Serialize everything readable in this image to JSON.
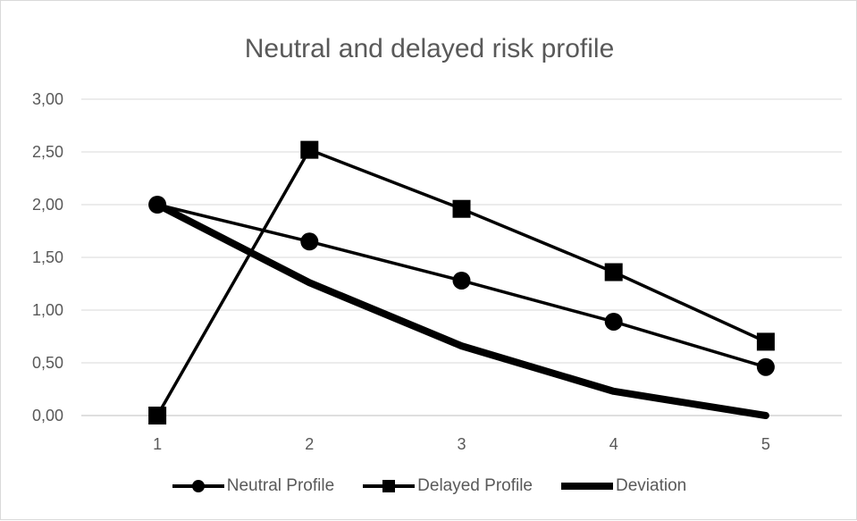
{
  "chart_data": {
    "type": "line",
    "title": "Neutral and delayed risk profile",
    "xlabel": "",
    "ylabel": "",
    "categories": [
      "1",
      "2",
      "3",
      "4",
      "5"
    ],
    "y_ticks": [
      "0,00",
      "0,50",
      "1,00",
      "1,50",
      "2,00",
      "2,50",
      "3,00"
    ],
    "ylim": [
      0,
      3
    ],
    "grid": true,
    "legend_position": "bottom",
    "series": [
      {
        "name": "Neutral Profile",
        "values": [
          2.0,
          1.65,
          1.28,
          0.89,
          0.46
        ],
        "marker": "circle",
        "color": "#000000"
      },
      {
        "name": "Delayed Profile",
        "values": [
          0.0,
          2.52,
          1.96,
          1.36,
          0.7
        ],
        "marker": "square",
        "color": "#000000"
      },
      {
        "name": "Deviation",
        "values": [
          2.0,
          1.26,
          0.66,
          0.23,
          0.0
        ],
        "marker": "none",
        "color": "#000000"
      }
    ]
  }
}
